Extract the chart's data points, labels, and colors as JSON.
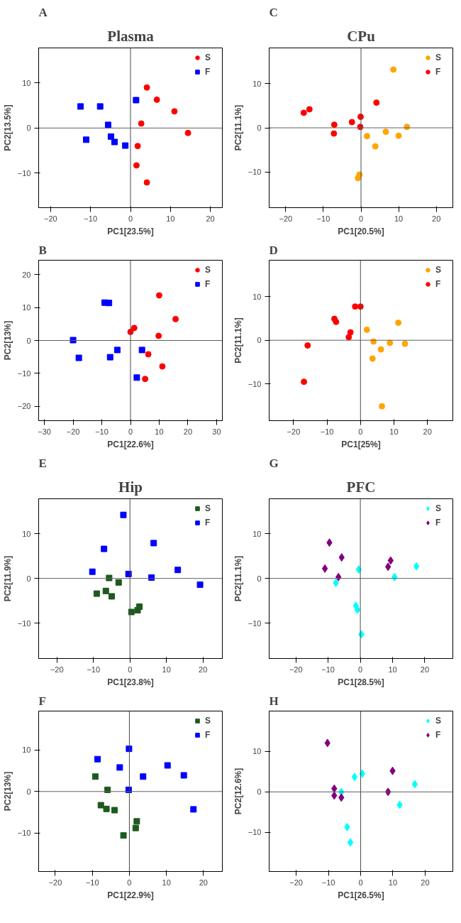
{
  "chart_data": [
    {
      "type": "scatter",
      "title": "Plasma",
      "subtitle": "A",
      "xlabel": "PC1[23.5%]",
      "ylabel": "PC2[13.5%]",
      "xlim": [
        -23,
        23
      ],
      "ylim": [
        -17.7,
        17.8
      ],
      "xticks": [
        -20,
        -10,
        0,
        10,
        20
      ],
      "yticks": [
        -10,
        0,
        10
      ],
      "grid": false,
      "legend": "top right",
      "ref_lines": [
        {
          "axis": "x",
          "value": 0,
          "color": "#4a4a4a"
        },
        {
          "axis": "y",
          "value": 0,
          "color": "#606060"
        }
      ],
      "series": [
        {
          "name": "S",
          "color": "#ff0000",
          "marker": "circle",
          "x": [
            4.1,
            6.6,
            11.0,
            14.4,
            2.7,
            1.8,
            1.5,
            4.1
          ],
          "values": [
            9.0,
            6.3,
            3.7,
            -1.1,
            1.0,
            -4.0,
            -8.3,
            -12.1
          ]
        },
        {
          "name": "F",
          "color": "#0000ff",
          "marker": "square",
          "x": [
            1.4,
            -12.5,
            -7.6,
            -5.6,
            -11.1,
            -4.9,
            -4.0,
            -1.3
          ],
          "values": [
            6.2,
            4.8,
            4.8,
            0.7,
            -2.6,
            -1.9,
            -3.1,
            -3.9
          ]
        }
      ]
    },
    {
      "type": "scatter",
      "title": "CPu",
      "subtitle": "C",
      "xlabel": "PC1[20.5%]",
      "ylabel": "PC2[11.1%]",
      "xlim": [
        -24.4,
        24.4
      ],
      "ylim": [
        -18.1,
        18.1
      ],
      "xticks": [
        -20,
        -10,
        0,
        10,
        20
      ],
      "yticks": [
        -10,
        0,
        10
      ],
      "grid": false,
      "legend": "top right",
      "ref_lines": [
        {
          "axis": "x",
          "value": 0,
          "color": "#4a4a4a"
        },
        {
          "axis": "y",
          "value": 0,
          "color": "#606060"
        }
      ],
      "series": [
        {
          "name": "S",
          "color": "#ffa500",
          "marker": "circle",
          "x": [
            8.6,
            12.2,
            6.6,
            10.0,
            1.6,
            3.8,
            -0.4,
            -0.8
          ],
          "values": [
            13.2,
            0.2,
            -0.9,
            -1.8,
            -1.9,
            -4.2,
            -10.6,
            -11.4
          ]
        },
        {
          "name": "F",
          "color": "#ff0000",
          "marker": "circle",
          "x": [
            4.1,
            -15.2,
            -13.7,
            -7.1,
            -7.2,
            -2.4,
            -0.1,
            -0.2
          ],
          "values": [
            5.7,
            3.4,
            4.2,
            0.7,
            -1.3,
            1.3,
            2.5,
            0.2
          ]
        }
      ]
    },
    {
      "type": "scatter",
      "subtitle": "B",
      "xlabel": "PC1[22.6%]",
      "ylabel": "PC2[13%]",
      "xlim": [
        -32,
        32
      ],
      "ylim": [
        -24.4,
        24.4
      ],
      "xticks": [
        -30,
        -20,
        -10,
        0,
        10,
        20,
        30
      ],
      "yticks": [
        -20,
        -10,
        0,
        10,
        20
      ],
      "grid": false,
      "legend": "top right",
      "ref_lines": [
        {
          "axis": "x",
          "value": 0,
          "color": "#4a4a4a"
        },
        {
          "axis": "y",
          "value": 0,
          "color": "#606060"
        }
      ],
      "series": [
        {
          "name": "S",
          "color": "#ff0000",
          "marker": "circle",
          "x": [
            10.0,
            15.7,
            1.3,
            0,
            9.8,
            6.2,
            11.1,
            5.1
          ],
          "values": [
            13.7,
            6.5,
            3.8,
            2.6,
            1.4,
            -4.2,
            -7.9,
            -11.7
          ]
        },
        {
          "name": "F",
          "color": "#0000ff",
          "marker": "square",
          "x": [
            -9.0,
            -7.5,
            -20,
            -18,
            -4.6,
            -7.1,
            4.0,
            2.2
          ],
          "values": [
            11.5,
            11.4,
            0.1,
            -5.3,
            -2.9,
            -5.1,
            -2.9,
            -11.3
          ]
        }
      ]
    },
    {
      "type": "scatter",
      "subtitle": "D",
      "xlabel": "PC1[25%]",
      "ylabel": "PC2[11.1%]",
      "xlim": [
        -27.3,
        27.6
      ],
      "ylim": [
        -18.4,
        18.3
      ],
      "xticks": [
        -20,
        -10,
        0,
        10,
        20
      ],
      "yticks": [
        -10,
        0,
        10
      ],
      "grid": false,
      "legend": "top right",
      "ref_lines": [
        {
          "axis": "x",
          "value": 0,
          "color": "#4a4a4a"
        },
        {
          "axis": "y",
          "value": 0,
          "color": "#606060"
        }
      ],
      "series": [
        {
          "name": "S",
          "color": "#ffa500",
          "marker": "circle",
          "x": [
            1.9,
            11.3,
            3.9,
            8.8,
            13.3,
            6.1,
            3.6,
            6.4
          ],
          "values": [
            2.4,
            4.0,
            -0.3,
            -0.6,
            -0.8,
            -2.1,
            -4.2,
            -15.1
          ]
        },
        {
          "name": "F",
          "color": "#ff0000",
          "marker": "circle",
          "x": [
            -1.6,
            0,
            -7.8,
            -7.3,
            -3.0,
            -3.5,
            -15.8,
            -16.9
          ],
          "values": [
            7.7,
            7.7,
            4.9,
            4.2,
            1.8,
            0.7,
            -1.2,
            -9.5
          ]
        }
      ]
    },
    {
      "type": "scatter",
      "title": "Hip",
      "subtitle": "E",
      "xlabel": "PC1[23.8%]",
      "ylabel": "PC2[11.9%]",
      "xlim": [
        -25,
        25.3
      ],
      "ylim": [
        -17.9,
        17.8
      ],
      "xticks": [
        -20,
        -10,
        0,
        10,
        20
      ],
      "yticks": [
        -10,
        0,
        10
      ],
      "grid": false,
      "legend": "top right",
      "ref_lines": [
        {
          "axis": "x",
          "value": 0,
          "color": "#4a4a4a"
        },
        {
          "axis": "y",
          "value": 0,
          "color": "#606060"
        }
      ],
      "series": [
        {
          "name": "S",
          "color": "#1e5a1e",
          "marker": "square",
          "x": [
            -5.7,
            -3.1,
            -9.1,
            -6.6,
            -5.0,
            0.4,
            2.1,
            2.6
          ],
          "values": [
            0.1,
            -0.9,
            -3.4,
            -2.8,
            -4.0,
            -7.5,
            -7.1,
            -6.3
          ]
        },
        {
          "name": "F",
          "color": "#0000ff",
          "marker": "square",
          "x": [
            -1.8,
            -7.1,
            6.5,
            -10.3,
            -0.4,
            5.9,
            13.1,
            19.2
          ],
          "values": [
            14.2,
            6.6,
            7.9,
            1.5,
            1.0,
            0.2,
            1.9,
            -1.4
          ]
        }
      ]
    },
    {
      "type": "scatter",
      "title": "PFC",
      "subtitle": "G",
      "xlabel": "PC1[28.5%]",
      "ylabel": "PC2[11.1%]",
      "xlim": [
        -28.3,
        28.7
      ],
      "ylim": [
        -17.9,
        17.8
      ],
      "xticks": [
        -20,
        -10,
        0,
        10,
        20
      ],
      "yticks": [
        -10,
        0,
        10
      ],
      "grid": false,
      "legend": "top right",
      "ref_lines": [
        {
          "axis": "x",
          "value": 0,
          "color": "#4a4a4a"
        },
        {
          "axis": "y",
          "value": 0,
          "color": "#606060"
        }
      ],
      "series": [
        {
          "name": "S",
          "color": "#00ffff",
          "marker": "diamond",
          "x": [
            -0.5,
            -7.6,
            -1.4,
            -0.9,
            0.3,
            10.6,
            17.4
          ],
          "values": [
            2.0,
            -1.0,
            -6.1,
            -7.0,
            -12.5,
            0.3,
            2.7
          ]
        },
        {
          "name": "F",
          "color": "#800080",
          "marker": "diamond",
          "x": [
            -9.6,
            -5.8,
            -11.0,
            -6.8,
            8.6,
            9.4
          ],
          "values": [
            8.0,
            4.7,
            2.2,
            0.3,
            2.6,
            4.0
          ]
        }
      ]
    },
    {
      "type": "scatter",
      "subtitle": "F",
      "xlabel": "PC1[22.9%]",
      "ylabel": "PC2[13%]",
      "xlim": [
        -24.5,
        25.1
      ],
      "ylim": [
        -19.3,
        19.4
      ],
      "xticks": [
        -20,
        -10,
        0,
        10,
        20
      ],
      "yticks": [
        -10,
        0,
        10
      ],
      "grid": false,
      "legend": "top right",
      "ref_lines": [
        {
          "axis": "x",
          "value": 0,
          "color": "#4a4a4a"
        },
        {
          "axis": "y",
          "value": 0,
          "color": "#606060"
        }
      ],
      "series": [
        {
          "name": "S",
          "color": "#1e5a1e",
          "marker": "square",
          "x": [
            -9.2,
            -5.9,
            -7.7,
            -6.2,
            -4.0,
            2.0,
            1.7,
            -1.6
          ],
          "values": [
            3.6,
            0.4,
            -3.3,
            -4.2,
            -4.5,
            -7.2,
            -8.8,
            -10.6
          ]
        },
        {
          "name": "F",
          "color": "#0000ff",
          "marker": "square",
          "x": [
            -0.1,
            -8.6,
            -2.6,
            3.7,
            10.3,
            14.7,
            -0.2,
            17.3
          ],
          "values": [
            10.3,
            7.8,
            5.8,
            3.6,
            6.3,
            3.9,
            0.4,
            -4.3
          ]
        }
      ]
    },
    {
      "type": "scatter",
      "subtitle": "H",
      "xlabel": "PC1[26.5%]",
      "ylabel": "PC2[12.6%]",
      "xlim": [
        -28.4,
        28.6
      ],
      "ylim": [
        -19.7,
        20
      ],
      "xticks": [
        -20,
        -10,
        0,
        10,
        20
      ],
      "yticks": [
        -10,
        0,
        10
      ],
      "grid": false,
      "legend": "top right",
      "ref_lines": [
        {
          "axis": "x",
          "value": 0,
          "color": "#4a4a4a"
        },
        {
          "axis": "y",
          "value": 0,
          "color": "#606060"
        }
      ],
      "series": [
        {
          "name": "S",
          "color": "#00ffff",
          "marker": "diamond",
          "x": [
            0.5,
            -1.9,
            -6.0,
            16.8,
            12.1,
            -4.2,
            -3.2
          ],
          "values": [
            4.5,
            3.7,
            0,
            1.9,
            -3.2,
            -8.7,
            -12.5
          ]
        },
        {
          "name": "F",
          "color": "#800080",
          "marker": "diamond",
          "x": [
            -10.3,
            -8.2,
            -8.2,
            -6.0,
            9.9,
            8.5
          ],
          "values": [
            12.1,
            0.8,
            -0.9,
            -1.4,
            5.2,
            0
          ]
        }
      ]
    }
  ]
}
